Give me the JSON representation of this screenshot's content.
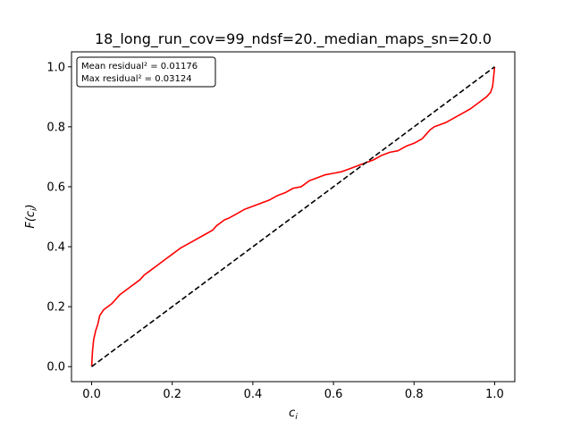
{
  "chart_data": {
    "type": "line",
    "title": "18_long_run_cov=99_ndsf=20._median_maps_sn=20.0",
    "xlabel": "c",
    "xlabel_sub": "i",
    "ylabel": "F(c",
    "ylabel_sub": "i",
    "ylabel_close": ")",
    "xlim": [
      -0.05,
      1.05
    ],
    "ylim": [
      -0.05,
      1.05
    ],
    "xticks": [
      0.0,
      0.2,
      0.4,
      0.6,
      0.8,
      1.0
    ],
    "yticks": [
      0.0,
      0.2,
      0.4,
      0.6,
      0.8,
      1.0
    ],
    "xtick_labels": [
      "0.0",
      "0.2",
      "0.4",
      "0.6",
      "0.8",
      "1.0"
    ],
    "ytick_labels": [
      "0.0",
      "0.2",
      "0.4",
      "0.6",
      "0.8",
      "1.0"
    ],
    "legend_placement": "top-left",
    "annotation": {
      "line1": "Mean residual² = 0.01176",
      "line2": "Max residual² = 0.03124"
    },
    "series": [
      {
        "color": "#ff0000",
        "style": "solid",
        "x": [
          0.0,
          0.002,
          0.005,
          0.01,
          0.015,
          0.02,
          0.03,
          0.04,
          0.05,
          0.06,
          0.07,
          0.08,
          0.09,
          0.1,
          0.11,
          0.12,
          0.13,
          0.14,
          0.15,
          0.16,
          0.17,
          0.18,
          0.19,
          0.2,
          0.22,
          0.24,
          0.26,
          0.28,
          0.3,
          0.31,
          0.32,
          0.33,
          0.34,
          0.36,
          0.38,
          0.4,
          0.42,
          0.44,
          0.46,
          0.48,
          0.5,
          0.52,
          0.54,
          0.56,
          0.58,
          0.6,
          0.62,
          0.64,
          0.66,
          0.68,
          0.7,
          0.72,
          0.74,
          0.76,
          0.78,
          0.8,
          0.82,
          0.84,
          0.85,
          0.86,
          0.88,
          0.9,
          0.92,
          0.94,
          0.96,
          0.98,
          0.99,
          0.995,
          1.0
        ],
        "y": [
          0.0,
          0.05,
          0.09,
          0.12,
          0.14,
          0.17,
          0.19,
          0.2,
          0.21,
          0.225,
          0.24,
          0.25,
          0.26,
          0.27,
          0.28,
          0.29,
          0.305,
          0.315,
          0.325,
          0.335,
          0.345,
          0.355,
          0.365,
          0.375,
          0.395,
          0.41,
          0.425,
          0.44,
          0.455,
          0.47,
          0.48,
          0.49,
          0.495,
          0.51,
          0.525,
          0.535,
          0.545,
          0.555,
          0.57,
          0.58,
          0.595,
          0.6,
          0.62,
          0.63,
          0.64,
          0.645,
          0.65,
          0.66,
          0.67,
          0.68,
          0.69,
          0.705,
          0.715,
          0.72,
          0.735,
          0.745,
          0.76,
          0.79,
          0.8,
          0.805,
          0.815,
          0.83,
          0.845,
          0.86,
          0.88,
          0.9,
          0.915,
          0.935,
          1.0
        ]
      },
      {
        "color": "#000000",
        "style": "dashed",
        "x": [
          0.0,
          1.0
        ],
        "y": [
          0.0,
          1.0
        ]
      }
    ]
  }
}
